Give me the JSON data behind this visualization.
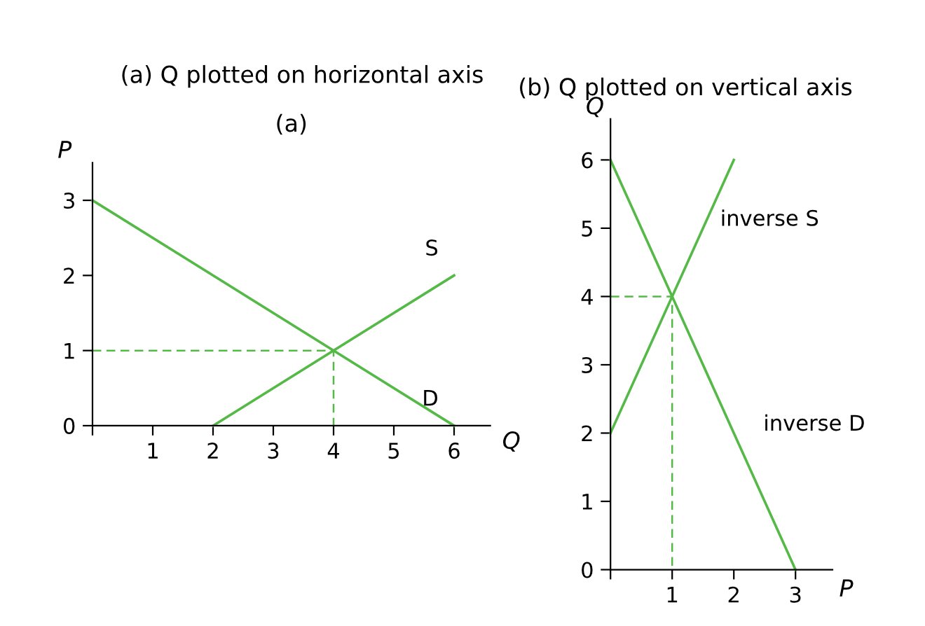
{
  "chart_data": [
    {
      "type": "line",
      "title": "(a) Q plotted on horizontal axis",
      "subtitle": "(a)",
      "xlabel": "Q",
      "ylabel": "P",
      "xlim": [
        0,
        6.6
      ],
      "ylim": [
        0,
        3.5
      ],
      "xticks": [
        {
          "value": 0,
          "label": null
        },
        1,
        2,
        3,
        4,
        5,
        6
      ],
      "yticks": [
        0,
        1,
        2,
        3
      ],
      "grid": false,
      "legend": false,
      "marker": "none",
      "series": [
        {
          "name": "S",
          "color": "#55b948",
          "x": [
            2,
            6
          ],
          "values": [
            0,
            2
          ],
          "line_style": "solid"
        },
        {
          "name": "D",
          "color": "#55b948",
          "x": [
            0,
            6
          ],
          "values": [
            3,
            0
          ],
          "line_style": "solid"
        },
        {
          "color": "#55b948",
          "x": [
            0,
            4,
            4
          ],
          "values": [
            1,
            1,
            0
          ],
          "line_style": "dashed"
        }
      ]
    },
    {
      "type": "line",
      "title": "(b) Q plotted on vertical axis",
      "xlabel": "P",
      "ylabel": "Q",
      "xlim": [
        0,
        3.6
      ],
      "ylim": [
        0,
        6.6
      ],
      "xticks": [
        {
          "value": 0,
          "label": null
        },
        1,
        2,
        3
      ],
      "yticks": [
        0,
        1,
        2,
        3,
        4,
        5,
        6
      ],
      "grid": false,
      "legend": false,
      "marker": "none",
      "series": [
        {
          "name": "inverse S",
          "color": "#55b948",
          "x": [
            0,
            2
          ],
          "values": [
            2,
            6
          ],
          "line_style": "solid"
        },
        {
          "name": "inverse D",
          "color": "#55b948",
          "x": [
            0,
            3
          ],
          "values": [
            6,
            0
          ],
          "line_style": "solid"
        },
        {
          "color": "#55b948",
          "x": [
            0,
            1,
            1
          ],
          "values": [
            4,
            4,
            0
          ],
          "line_style": "dashed"
        }
      ]
    }
  ]
}
